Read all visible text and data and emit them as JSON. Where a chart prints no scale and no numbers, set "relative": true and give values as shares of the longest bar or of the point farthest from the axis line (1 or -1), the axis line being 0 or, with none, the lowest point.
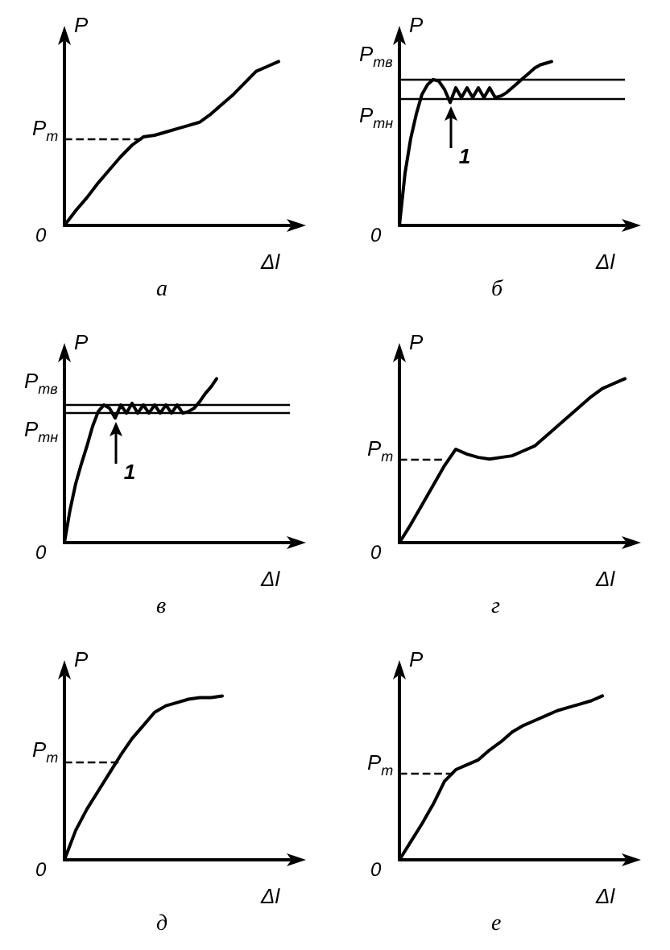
{
  "chart_data": [
    {
      "type": "line",
      "title": "а",
      "xlabel": "Δl",
      "ylabel": "P",
      "relative": true,
      "marker": "none",
      "categories": [
        null,
        null,
        null,
        null,
        null,
        null,
        null,
        null,
        null,
        null,
        null,
        null,
        null,
        null,
        null,
        null,
        null,
        null,
        null,
        null,
        null
      ],
      "series": [
        {
          "color": "#000000",
          "values": [
            0,
            0.09,
            0.17,
            0.26,
            0.34,
            0.42,
            0.49,
            0.54,
            0.55,
            0.57,
            0.59,
            0.61,
            0.63,
            0.68,
            0.74,
            0.8,
            0.87,
            0.94,
            0.97,
            1,
            null
          ]
        }
      ],
      "ref_lines": [
        {
          "axis": "y",
          "value": 0.53,
          "label": "P$_{т}$",
          "line_style": "dashed"
        }
      ],
      "annotations": [
        "0"
      ]
    },
    {
      "type": "line",
      "title": "б",
      "xlabel": "Δl",
      "ylabel": "P",
      "relative": true,
      "marker": "none",
      "categories": [
        null,
        null,
        null,
        null,
        null,
        null,
        null,
        null,
        null,
        null,
        null,
        null,
        null,
        null,
        null,
        null,
        null,
        null,
        null,
        null,
        null,
        null,
        null,
        null,
        null,
        null,
        null,
        null,
        null,
        null,
        null,
        null,
        null,
        null,
        null,
        null,
        null,
        null,
        null,
        null,
        null
      ],
      "series": [
        {
          "color": "#000000",
          "values": [
            0,
            0.32,
            0.53,
            0.68,
            0.8,
            0.86,
            0.89,
            0.88,
            0.83,
            0.75,
            0.84,
            0.78,
            0.84,
            0.78,
            0.84,
            0.78,
            0.84,
            0.78,
            0.79,
            0.81,
            0.84,
            0.87,
            0.9,
            0.93,
            0.96,
            0.98,
            0.99,
            1,
            null,
            null,
            null,
            null,
            null,
            null,
            null,
            null,
            null,
            null,
            null,
            null,
            null
          ]
        }
      ],
      "ref_lines": [
        {
          "axis": "y",
          "value": 0.89,
          "label": "P$_{тв}$",
          "line_style": "solid"
        },
        {
          "axis": "y",
          "value": 0.77,
          "label": "P$_{тн}$",
          "line_style": "solid"
        }
      ],
      "annotations": [
        "0",
        {
          "text": "1",
          "y": 0.75
        }
      ]
    },
    {
      "type": "line",
      "title": "в",
      "xlabel": "Δl",
      "ylabel": "P",
      "relative": true,
      "marker": "none",
      "categories": [
        null,
        null,
        null,
        null,
        null,
        null,
        null,
        null,
        null,
        null,
        null,
        null,
        null,
        null,
        null,
        null,
        null,
        null,
        null,
        null,
        null,
        null,
        null,
        null,
        null,
        null,
        null,
        null,
        null,
        null,
        null,
        null,
        null,
        null,
        null,
        null,
        null,
        null,
        null,
        null,
        null
      ],
      "series": [
        {
          "color": "#000000",
          "values": [
            0,
            0.2,
            0.36,
            0.48,
            0.59,
            0.71,
            0.8,
            0.84,
            0.82,
            0.76,
            0.84,
            0.79,
            0.85,
            0.79,
            0.84,
            0.79,
            0.84,
            0.79,
            0.84,
            0.79,
            0.84,
            0.79,
            0.8,
            0.82,
            0.86,
            0.91,
            0.95,
            1,
            null,
            null,
            null,
            null,
            null,
            null,
            null,
            null,
            null,
            null,
            null,
            null,
            null
          ]
        }
      ],
      "ref_lines": [
        {
          "axis": "y",
          "value": 0.84,
          "label": "P$_{тв}$",
          "line_style": "solid"
        },
        {
          "axis": "y",
          "value": 0.79,
          "label": "P$_{тн}$",
          "line_style": "solid"
        }
      ],
      "annotations": [
        "0",
        {
          "text": "1",
          "y": 0.76
        }
      ]
    },
    {
      "type": "line",
      "title": "г",
      "xlabel": "Δl",
      "ylabel": "P",
      "relative": true,
      "marker": "none",
      "categories": [
        null,
        null,
        null,
        null,
        null,
        null,
        null,
        null,
        null,
        null,
        null,
        null,
        null,
        null,
        null,
        null,
        null,
        null,
        null,
        null,
        null
      ],
      "series": [
        {
          "color": "#000000",
          "values": [
            0,
            0.11,
            0.23,
            0.35,
            0.47,
            0.57,
            0.54,
            0.52,
            0.51,
            0.52,
            0.53,
            0.56,
            0.59,
            0.65,
            0.71,
            0.77,
            0.83,
            0.89,
            0.94,
            0.97,
            1
          ]
        }
      ],
      "ref_lines": [
        {
          "axis": "y",
          "value": 0.51,
          "label": "P$_{т}$",
          "line_style": "dashed"
        }
      ],
      "annotations": [
        "0"
      ]
    },
    {
      "type": "line",
      "title": "д",
      "xlabel": "Δl",
      "ylabel": "P",
      "relative": true,
      "marker": "none",
      "categories": [
        null,
        null,
        null,
        null,
        null,
        null,
        null,
        null,
        null,
        null,
        null,
        null,
        null,
        null,
        null,
        null,
        null,
        null,
        null,
        null,
        null
      ],
      "series": [
        {
          "color": "#000000",
          "values": [
            0,
            0.18,
            0.31,
            0.42,
            0.53,
            0.64,
            0.74,
            0.82,
            0.9,
            0.94,
            0.96,
            0.98,
            0.99,
            0.99,
            1,
            null,
            null,
            null,
            null,
            null,
            null
          ]
        }
      ],
      "ref_lines": [
        {
          "axis": "y",
          "value": 0.6,
          "label": "P$_{т}$",
          "line_style": "dashed"
        }
      ],
      "annotations": [
        "0"
      ]
    },
    {
      "type": "line",
      "title": "е",
      "xlabel": "Δl",
      "ylabel": "P",
      "relative": true,
      "marker": "none",
      "categories": [
        null,
        null,
        null,
        null,
        null,
        null,
        null,
        null,
        null,
        null,
        null,
        null,
        null,
        null,
        null,
        null,
        null,
        null,
        null,
        null,
        null
      ],
      "series": [
        {
          "color": "#000000",
          "values": [
            0,
            0.11,
            0.22,
            0.34,
            0.48,
            0.55,
            0.58,
            0.61,
            0.67,
            0.72,
            0.78,
            0.82,
            0.85,
            0.88,
            0.91,
            0.93,
            0.95,
            0.97,
            1,
            null,
            null
          ]
        }
      ],
      "ref_lines": [
        {
          "axis": "y",
          "value": 0.53,
          "label": "P$_{т}$",
          "line_style": "dashed"
        }
      ],
      "annotations": [
        "0"
      ]
    }
  ]
}
